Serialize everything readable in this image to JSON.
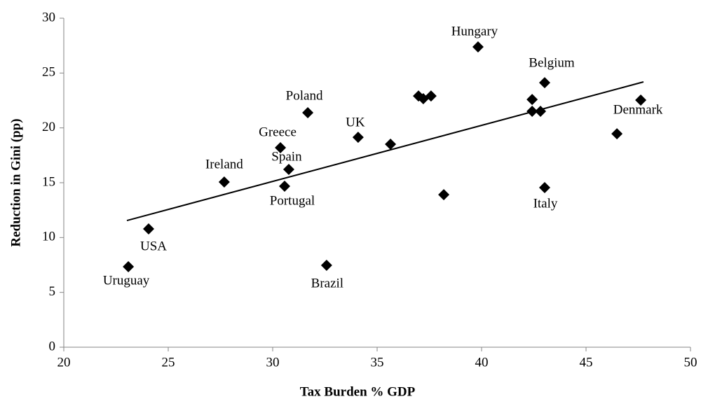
{
  "chart_data": {
    "type": "scatter",
    "x_label": "Tax Burden % GDP",
    "y_label": "Reduction in Gini (pp)",
    "x": [
      23.09,
      24.06,
      27.68,
      30.37,
      30.77,
      30.57,
      31.68,
      32.58,
      34.09,
      35.64,
      36.98,
      37.21,
      37.58,
      38.19,
      39.83,
      42.42,
      42.42,
      42.82,
      43.02,
      43.02,
      47.62,
      46.48
    ],
    "values": [
      7.34,
      10.79,
      15.06,
      18.19,
      16.21,
      14.68,
      21.38,
      7.47,
      19.14,
      18.51,
      22.91,
      22.66,
      22.91,
      13.91,
      27.38,
      22.59,
      21.51,
      21.51,
      24.12,
      14.55,
      22.53,
      19.46
    ],
    "labels": [
      "Uruguay",
      "USA",
      "Ireland",
      "Greece",
      "Spain",
      "Portugal",
      "Poland",
      "Brazil",
      "UK",
      null,
      null,
      null,
      null,
      null,
      "Hungary",
      null,
      null,
      null,
      "Belgium",
      "Italy",
      "Denmark",
      null
    ],
    "color": "#000000",
    "trendline": {
      "x": [
        23.02,
        47.75
      ],
      "y": [
        11.55,
        24.19
      ]
    },
    "xlim": [
      20,
      50
    ],
    "xticks": [
      20,
      25,
      30,
      35,
      40,
      45,
      50
    ],
    "ylim": [
      0,
      30
    ],
    "yticks": [
      0,
      5,
      10,
      15,
      20,
      25,
      30
    ]
  }
}
